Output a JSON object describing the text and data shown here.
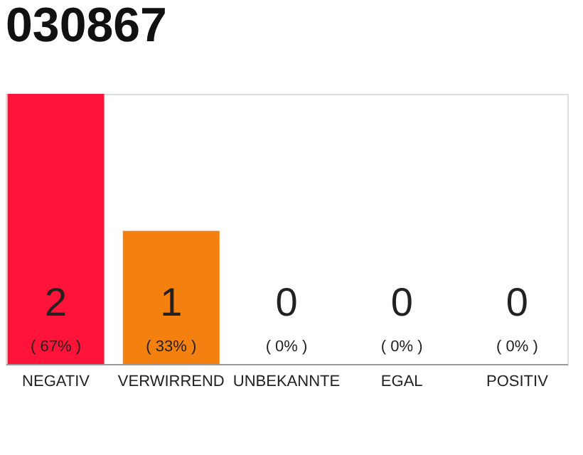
{
  "chart_data": {
    "type": "bar",
    "title": "030867",
    "categories": [
      "NEGATIV",
      "VERWIRREND",
      "UNBEKANNTE",
      "EGAL",
      "POSITIV"
    ],
    "values": [
      67,
      33,
      0,
      0,
      0
    ],
    "colors": [
      "#ff1439",
      "#f4800f",
      "#f4800f",
      "#f4800f",
      "#f4800f"
    ],
    "value_labels": [
      "( 67% )",
      "( 33% )",
      "( 0% )",
      "( 0% )",
      "( 0% )"
    ],
    "annotations": [
      {
        "text": "2",
        "x": "NEGATIV",
        "y": 0
      },
      {
        "text": "1",
        "x": "VERWIRREND",
        "y": 0
      },
      {
        "text": "0",
        "x": "UNBEKANNTE",
        "y": 0
      },
      {
        "text": "0",
        "x": "EGAL",
        "y": 0
      },
      {
        "text": "0",
        "x": "POSITIV",
        "y": 0
      }
    ]
  }
}
